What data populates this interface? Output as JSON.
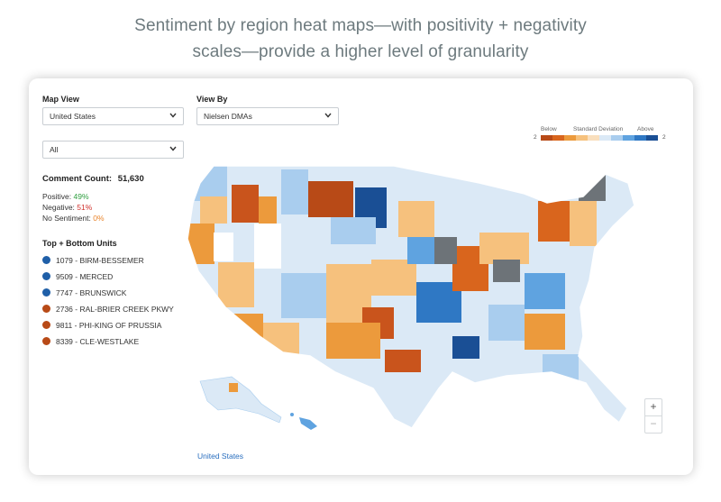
{
  "headline": {
    "line1": "Sentiment by region heat maps—with positivity + negativity",
    "line2": "scales—provide a higher level of granularity"
  },
  "controls": {
    "map_view_label": "Map View",
    "map_view_value": "United States",
    "view_by_label": "View By",
    "view_by_value": "Nielsen DMAs",
    "filter_value": "All"
  },
  "stats": {
    "count_label": "Comment Count:",
    "count_value": "51,630",
    "positive_label": "Positive:",
    "positive_value": "49%",
    "negative_label": "Negative:",
    "negative_value": "51%",
    "none_label": "No Sentiment:",
    "none_value": "0%"
  },
  "units": {
    "title": "Top + Bottom Units",
    "items": [
      {
        "label": "1079 - BIRM-BESSEMER",
        "color": "#1f5fa8"
      },
      {
        "label": "9509 - MERCED",
        "color": "#1f5fa8"
      },
      {
        "label": "7747 - BRUNSWICK",
        "color": "#1f5fa8"
      },
      {
        "label": "2736 - RAL-BRIER CREEK PKWY",
        "color": "#b84a17"
      },
      {
        "label": "9811 - PHI-KING OF PRUSSIA",
        "color": "#b84a17"
      },
      {
        "label": "8339 - CLE-WESTLAKE",
        "color": "#b84a17"
      }
    ]
  },
  "legend": {
    "below": "Below",
    "middle": "Standard Deviation",
    "above": "Above",
    "min": "2",
    "max": "2",
    "colors": [
      "#b84a17",
      "#d9651d",
      "#ec9a3c",
      "#f6c17d",
      "#f9dfbd",
      "#dbe9f6",
      "#a9cdee",
      "#5fa3e0",
      "#2f78c4",
      "#1a4f95"
    ]
  },
  "zoom": {
    "in": "+",
    "out": "−"
  },
  "footer_link": "United States"
}
